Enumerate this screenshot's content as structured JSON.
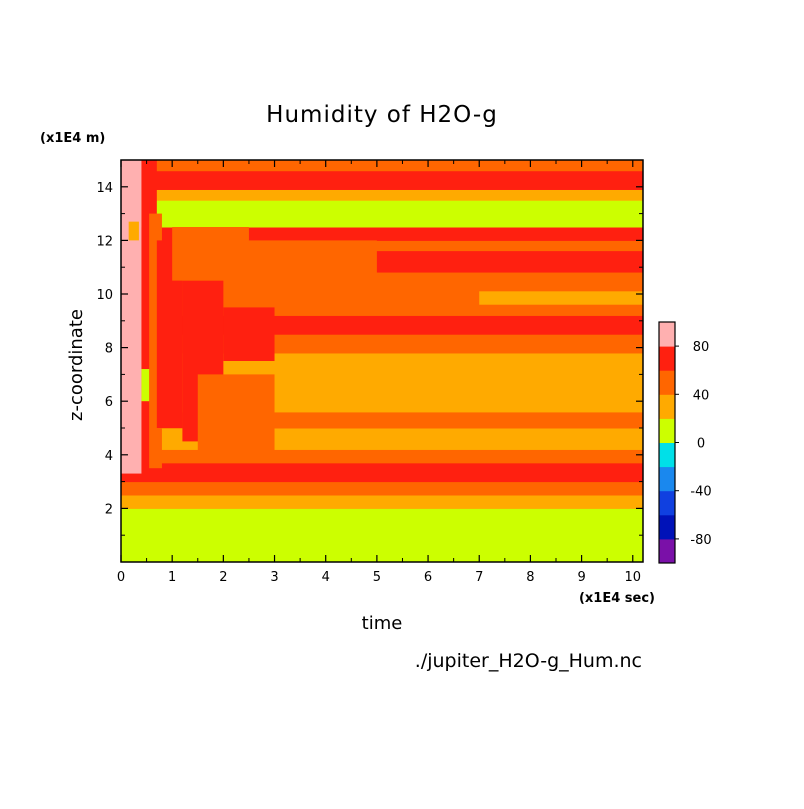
{
  "chart_data": {
    "type": "heatmap",
    "title": "Humidity of H2O-g",
    "xlabel": "time",
    "ylabel": "z-coordinate",
    "x_unit": "(x1E4 sec)",
    "y_unit": "(x1E4 m)",
    "source_file": "./jupiter_H2O-g_Hum.nc",
    "xlim": [
      0,
      10.2
    ],
    "ylim": [
      0,
      15
    ],
    "x_ticks": [
      "0",
      "1",
      "2",
      "3",
      "4",
      "5",
      "6",
      "7",
      "8",
      "9",
      "10"
    ],
    "y_ticks": [
      "2",
      "4",
      "6",
      "8",
      "10",
      "12",
      "14"
    ],
    "colorbar": {
      "levels": [
        -100,
        -80,
        -60,
        -40,
        -20,
        0,
        20,
        40,
        60,
        80,
        100
      ],
      "colors": [
        "#7a10a8",
        "#0012b8",
        "#1040e0",
        "#1a88ee",
        "#00e0e8",
        "#ccff00",
        "#ffaa00",
        "#ff6600",
        "#ff2010",
        "#ffb0b0"
      ],
      "tick_labels": [
        "80",
        "40",
        "0",
        "-40",
        "-80"
      ],
      "tick_values": [
        80,
        40,
        0,
        -40,
        -80
      ]
    },
    "bands": [
      {
        "z0": 0,
        "z1": 2.0,
        "level": 0
      },
      {
        "z0": 2.0,
        "z1": 2.5,
        "level": 20
      },
      {
        "z0": 2.5,
        "z1": 3.0,
        "level": 40
      },
      {
        "z0": 3.0,
        "z1": 3.7,
        "level": 60
      },
      {
        "z0": 3.7,
        "z1": 4.2,
        "level": 40
      },
      {
        "z0": 4.2,
        "z1": 5.0,
        "level": 20
      },
      {
        "z0": 5.0,
        "z1": 5.6,
        "level": 40
      },
      {
        "z0": 5.6,
        "z1": 6.2,
        "level": 20
      },
      {
        "z0": 6.2,
        "z1": 7.8,
        "level": 20
      },
      {
        "z0": 7.8,
        "z1": 8.5,
        "level": 40
      },
      {
        "z0": 8.5,
        "z1": 9.2,
        "level": 60
      },
      {
        "z0": 9.2,
        "z1": 10.2,
        "level": 40
      },
      {
        "z0": 10.2,
        "z1": 11.3,
        "level": 40
      },
      {
        "z0": 11.3,
        "z1": 12.0,
        "level": 40
      },
      {
        "z0": 12.0,
        "z1": 12.5,
        "level": 60
      },
      {
        "z0": 12.5,
        "z1": 13.5,
        "level": 0
      },
      {
        "z0": 13.5,
        "z1": 13.9,
        "level": 20
      },
      {
        "z0": 13.9,
        "z1": 14.6,
        "level": 60
      },
      {
        "z0": 14.6,
        "z1": 15.0,
        "level": 40
      }
    ],
    "regions": [
      {
        "t0": 0,
        "t1": 0.4,
        "z0": 3.3,
        "z1": 15,
        "level": 80
      },
      {
        "t0": 0.15,
        "t1": 0.35,
        "z0": 12.0,
        "z1": 12.7,
        "level": 20
      },
      {
        "t0": 0.4,
        "t1": 0.7,
        "z0": 3.0,
        "z1": 15,
        "level": 60
      },
      {
        "t0": 0.55,
        "t1": 0.8,
        "z0": 3.5,
        "z1": 13.0,
        "level": 40
      },
      {
        "t0": 0.4,
        "t1": 0.55,
        "z0": 6.0,
        "z1": 7.2,
        "level": 0
      },
      {
        "t0": 0.7,
        "t1": 1.2,
        "z0": 5.0,
        "z1": 12.0,
        "level": 60
      },
      {
        "t0": 1.2,
        "t1": 2.0,
        "z0": 4.5,
        "z1": 10.5,
        "level": 60
      },
      {
        "t0": 2.0,
        "t1": 3.0,
        "z0": 7.5,
        "z1": 9.5,
        "level": 60
      },
      {
        "t0": 1.0,
        "t1": 2.5,
        "z0": 10.5,
        "z1": 12.5,
        "level": 40
      },
      {
        "t0": 2.5,
        "t1": 5.0,
        "z0": 10.0,
        "z1": 12.0,
        "level": 40
      },
      {
        "t0": 1.5,
        "t1": 3.0,
        "z0": 4.0,
        "z1": 7.0,
        "level": 40
      },
      {
        "t0": 5.0,
        "t1": 10.2,
        "z0": 10.8,
        "z1": 11.6,
        "level": 60
      },
      {
        "t0": 7.0,
        "t1": 10.2,
        "z0": 9.6,
        "z1": 10.1,
        "level": 20
      }
    ]
  }
}
